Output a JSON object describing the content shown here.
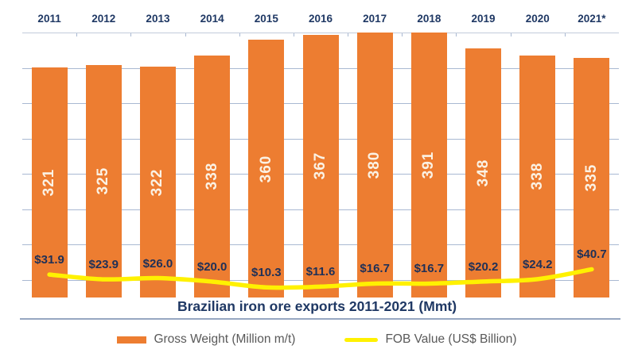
{
  "chart_data": {
    "type": "bar",
    "title": "Brazilian iron ore exports 2011-2021 (Mmt)",
    "categories": [
      "2011",
      "2012",
      "2013",
      "2014",
      "2015",
      "2016",
      "2017",
      "2018",
      "2019",
      "2020",
      "2021*"
    ],
    "series": [
      {
        "name": "Gross Weight (Million m/t)",
        "type": "bar",
        "color": "#ED7D31",
        "values": [
          321,
          325,
          322,
          338,
          360,
          367,
          380,
          391,
          348,
          338,
          335
        ],
        "labels": [
          "321",
          "325",
          "322",
          "338",
          "360",
          "367",
          "380",
          "391",
          "348",
          "338",
          "335"
        ]
      },
      {
        "name": "FOB Value (US$ Billion)",
        "type": "line",
        "color": "#FFF100",
        "values": [
          31.9,
          23.9,
          26.0,
          20.0,
          10.3,
          11.6,
          16.7,
          16.7,
          20.2,
          24.2,
          40.7
        ],
        "labels": [
          "$31.9",
          "$23.9",
          "$26.0",
          "$20.0",
          "$10.3",
          "$11.6",
          "$16.7",
          "$16.7",
          "$20.2",
          "$24.2",
          "$40.7"
        ]
      }
    ],
    "xlabel": "",
    "ylabel": "",
    "ylim": [
      0,
      370
    ],
    "grid": true,
    "legend_position": "bottom",
    "category_axis_position": "top",
    "bar_value_labels": "inside-rotated",
    "line_value_labels": "above-line"
  },
  "colors": {
    "bar_fill": "#ED7D31",
    "line_stroke": "#FFF100",
    "axis_text": "#1F3864",
    "value_label_text": "#1F3057",
    "bar_label_text": "#FBF2E4",
    "gridline": "#A9B9D2",
    "legend_text": "#595959"
  }
}
